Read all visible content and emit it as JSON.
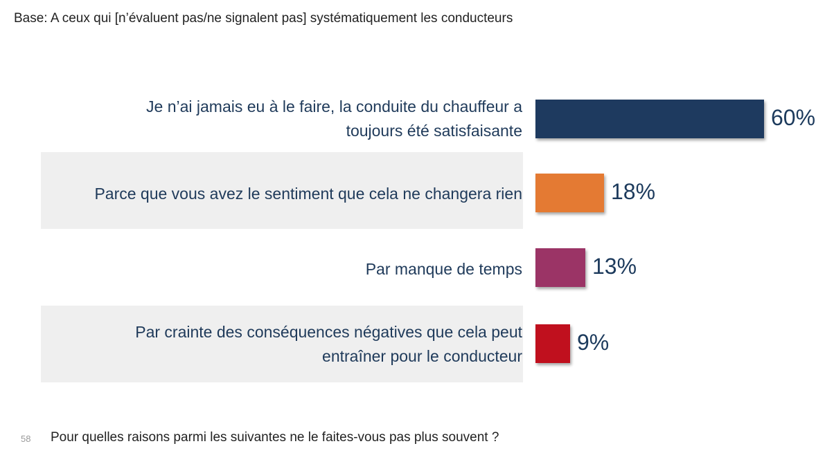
{
  "header": {
    "base_text": "Base: A ceux qui [n’évaluent pas/ne signalent pas] systématiquement les conducteurs"
  },
  "footer": {
    "page_number": "58",
    "question": "Pour quelles raisons parmi les suivantes ne le faites-vous pas plus souvent ?"
  },
  "chart_data": {
    "type": "bar",
    "orientation": "horizontal",
    "categories": [
      [
        "Je n’ai jamais eu à le faire, la conduite du chauffeur a",
        "toujours été satisfaisante"
      ],
      [
        "Parce que vous avez le sentiment que cela ne changera rien"
      ],
      [
        "Par manque de temps"
      ],
      [
        "Par crainte des conséquences négatives que cela peut",
        "entraîner pour le conducteur"
      ]
    ],
    "values": [
      60,
      18,
      13,
      9
    ],
    "value_labels": [
      "60%",
      "18%",
      "13%",
      "9%"
    ],
    "colors": [
      "#1e3a5f",
      "#e47a33",
      "#9b3466",
      "#c0101e"
    ],
    "xlim": [
      0,
      60
    ],
    "grid": false,
    "legend": "none"
  }
}
